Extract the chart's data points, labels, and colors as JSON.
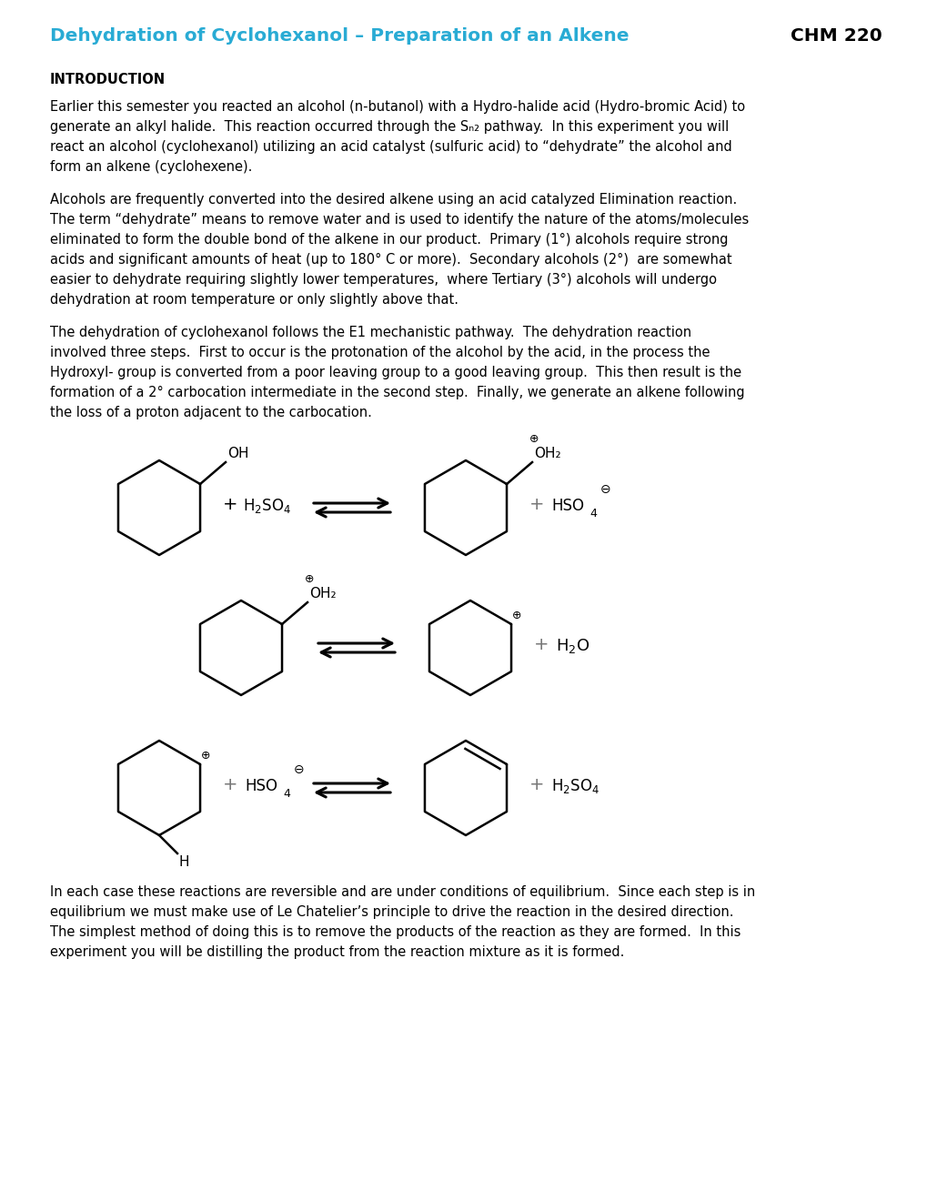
{
  "title": "Dehydration of Cyclohexanol – Preparation of an Alkene",
  "course": "CHM 220",
  "title_color": "#29ABD4",
  "bg_color": "#ffffff",
  "text_color": "#000000",
  "section_header": "INTRODUCTION",
  "para1_lines": [
    "Earlier this semester you reacted an alcohol (n-butanol) with a Hydro-halide acid (Hydro-bromic Acid) to",
    "generate an alkyl halide.  This reaction occurred through the Sₙ₂ pathway.  In this experiment you will",
    "react an alcohol (cyclohexanol) utilizing an acid catalyst (sulfuric acid) to “dehydrate” the alcohol and",
    "form an alkene (cyclohexene)."
  ],
  "para2_lines": [
    "Alcohols are frequently converted into the desired alkene using an acid catalyzed Elimination reaction.",
    "The term “dehydrate” means to remove water and is used to identify the nature of the atoms/molecules",
    "eliminated to form the double bond of the alkene in our product.  Primary (1°) alcohols require strong",
    "acids and significant amounts of heat (up to 180° C or more).  Secondary alcohols (2°)  are somewhat",
    "easier to dehydrate requiring slightly lower temperatures,  where Tertiary (3°) alcohols will undergo",
    "dehydration at room temperature or only slightly above that."
  ],
  "para3_lines": [
    "The dehydration of cyclohexanol follows the E1 mechanistic pathway.  The dehydration reaction",
    "involved three steps.  First to occur is the protonation of the alcohol by the acid, in the process the",
    "Hydroxyl- group is converted from a poor leaving group to a good leaving group.  This then result is the",
    "formation of a 2° carbocation intermediate in the second step.  Finally, we generate an alkene following",
    "the loss of a proton adjacent to the carbocation."
  ],
  "para4_lines": [
    "In each case these reactions are reversible and are under conditions of equilibrium.  Since each step is in",
    "equilibrium we must make use of Le Chatelier’s principle to drive the reaction in the desired direction.",
    "The simplest method of doing this is to remove the products of the reaction as they are formed.  In this",
    "experiment you will be distilling the product from the reaction mixture as it is formed."
  ]
}
